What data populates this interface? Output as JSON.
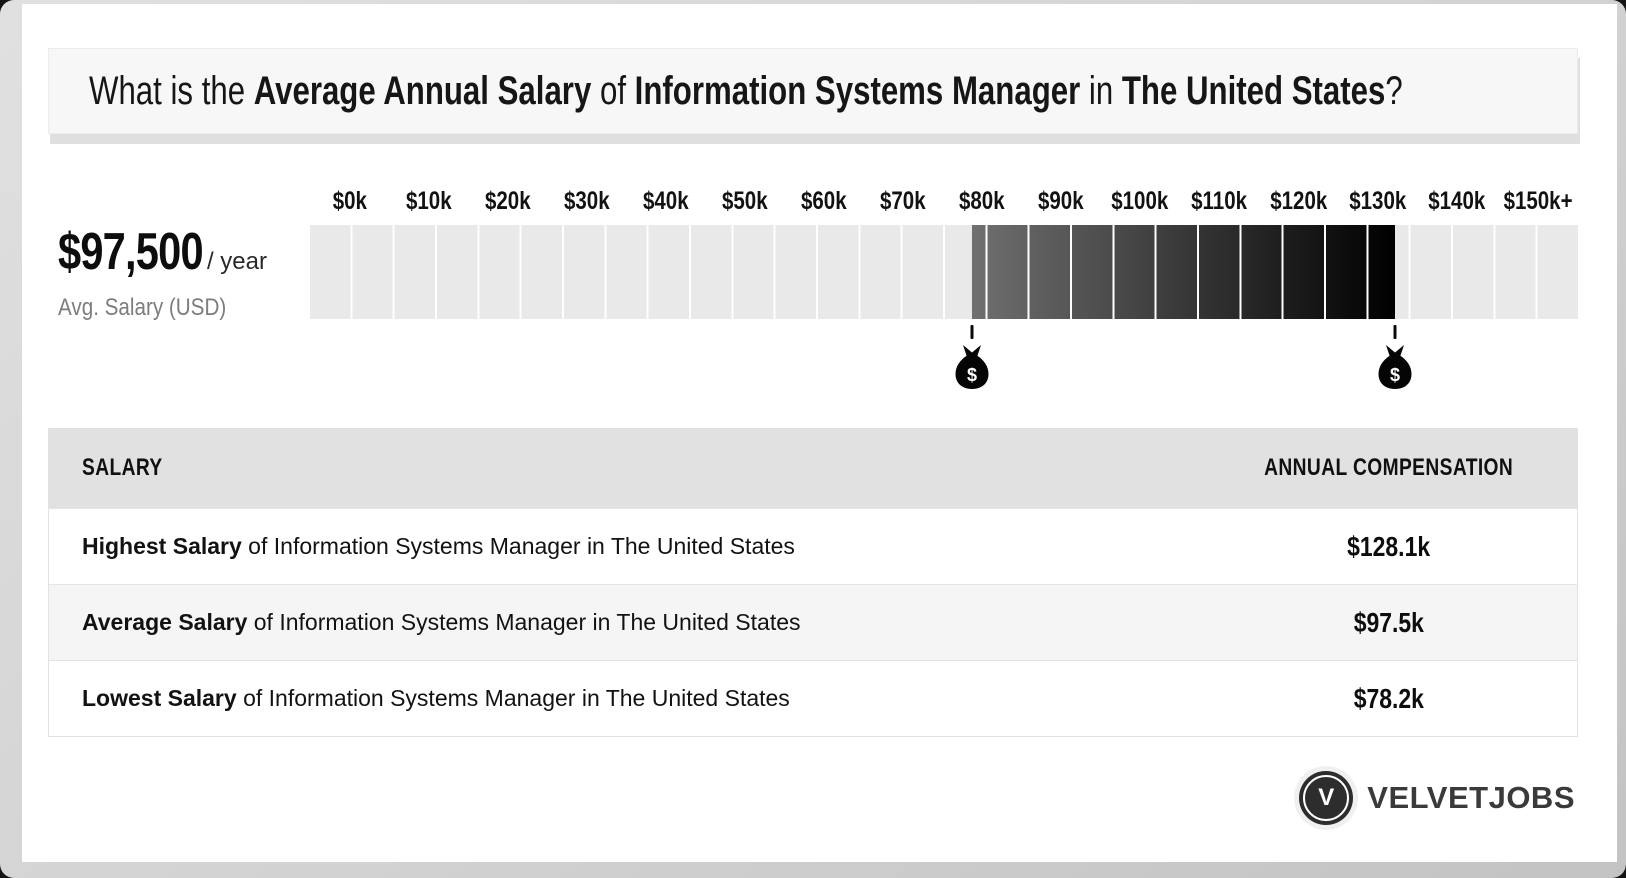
{
  "title": {
    "segments": [
      {
        "text": "What is the "
      },
      {
        "text": "Average Annual Salary"
      },
      {
        "text": " of "
      },
      {
        "text": "Information Systems Manager"
      },
      {
        "text": " in "
      },
      {
        "text": "The United States"
      },
      {
        "text": "?"
      }
    ]
  },
  "summary": {
    "amount": "$97,500",
    "per_label": "/ year",
    "caption": "Avg. Salary (USD)"
  },
  "chart_data": {
    "type": "range-bar",
    "axis_labels": [
      "$0k",
      "$10k",
      "$20k",
      "$30k",
      "$40k",
      "$50k",
      "$60k",
      "$70k",
      "$80k",
      "$90k",
      "$100k",
      "$110k",
      "$120k",
      "$130k",
      "$140k",
      "$150k+"
    ],
    "axis_min": 0,
    "axis_max": 150,
    "segment_step": 5,
    "low": 78.2,
    "high": 128.1,
    "average": 97.5,
    "low_label": "$78.2k",
    "high_label": "$128.1k",
    "average_label": "$97.5k",
    "track_color": "#e9e9e9",
    "gap_color": "#ffffff",
    "range_gradient": [
      "#707070",
      "#000000"
    ],
    "marker_icon": "money-bag-icon",
    "marker_symbol": "$"
  },
  "table": {
    "col1_header": "SALARY",
    "col2_header": "ANNUAL COMPENSATION",
    "rows": [
      {
        "bold": "Highest Salary",
        "rest": " of Information Systems Manager in The United States",
        "value": "$128.1k"
      },
      {
        "bold": "Average Salary",
        "rest": " of Information Systems Manager in The United States",
        "value": "$97.5k"
      },
      {
        "bold": "Lowest Salary",
        "rest": " of Information Systems Manager in The United States",
        "value": "$78.2k"
      }
    ]
  },
  "footer": {
    "brand": "VELVETJOBS",
    "brand_initial": "V"
  }
}
